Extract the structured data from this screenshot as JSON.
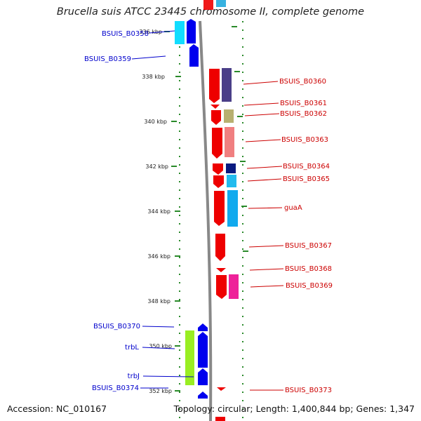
{
  "title": "Brucella suis ATCC 23445 chromosome II, complete genome",
  "accession": "Accession: NC_010167",
  "footer": "Topology: circular; Length: 1,400,844 bp; Genes: 1,347",
  "scale_ticks": [
    {
      "label": "336 kbp"
    },
    {
      "label": "338 kbp"
    },
    {
      "label": "340 kbp"
    },
    {
      "label": "342 kbp"
    },
    {
      "label": "344 kbp"
    },
    {
      "label": "346 kbp"
    },
    {
      "label": "348 kbp"
    },
    {
      "label": "350 kbp"
    },
    {
      "label": "352 kbp"
    }
  ],
  "colors": {
    "forward_label": "#cc0000",
    "reverse_label": "#0000cc",
    "forward_gene": "#ee0000",
    "reverse_gene": "#0000ee",
    "backbone": "#888888",
    "tick": "#2a8a2a"
  },
  "reverse_genes": [
    {
      "label": "BSUIS_B0358"
    },
    {
      "label": "BSUIS_B0359"
    },
    {
      "label": "BSUIS_B0370"
    },
    {
      "label": "trbL"
    },
    {
      "label": "trbJ"
    },
    {
      "label": "BSUIS_B0374"
    }
  ],
  "forward_genes": [
    {
      "label": "BSUIS_B0360"
    },
    {
      "label": "BSUIS_B0361"
    },
    {
      "label": "BSUIS_B0362"
    },
    {
      "label": "BSUIS_B0363"
    },
    {
      "label": "BSUIS_B0364"
    },
    {
      "label": "BSUIS_B0365"
    },
    {
      "label": "guaA"
    },
    {
      "label": "BSUIS_B0367"
    },
    {
      "label": "BSUIS_B0368"
    },
    {
      "label": "BSUIS_B0369"
    },
    {
      "label": "BSUIS_B0373"
    }
  ]
}
